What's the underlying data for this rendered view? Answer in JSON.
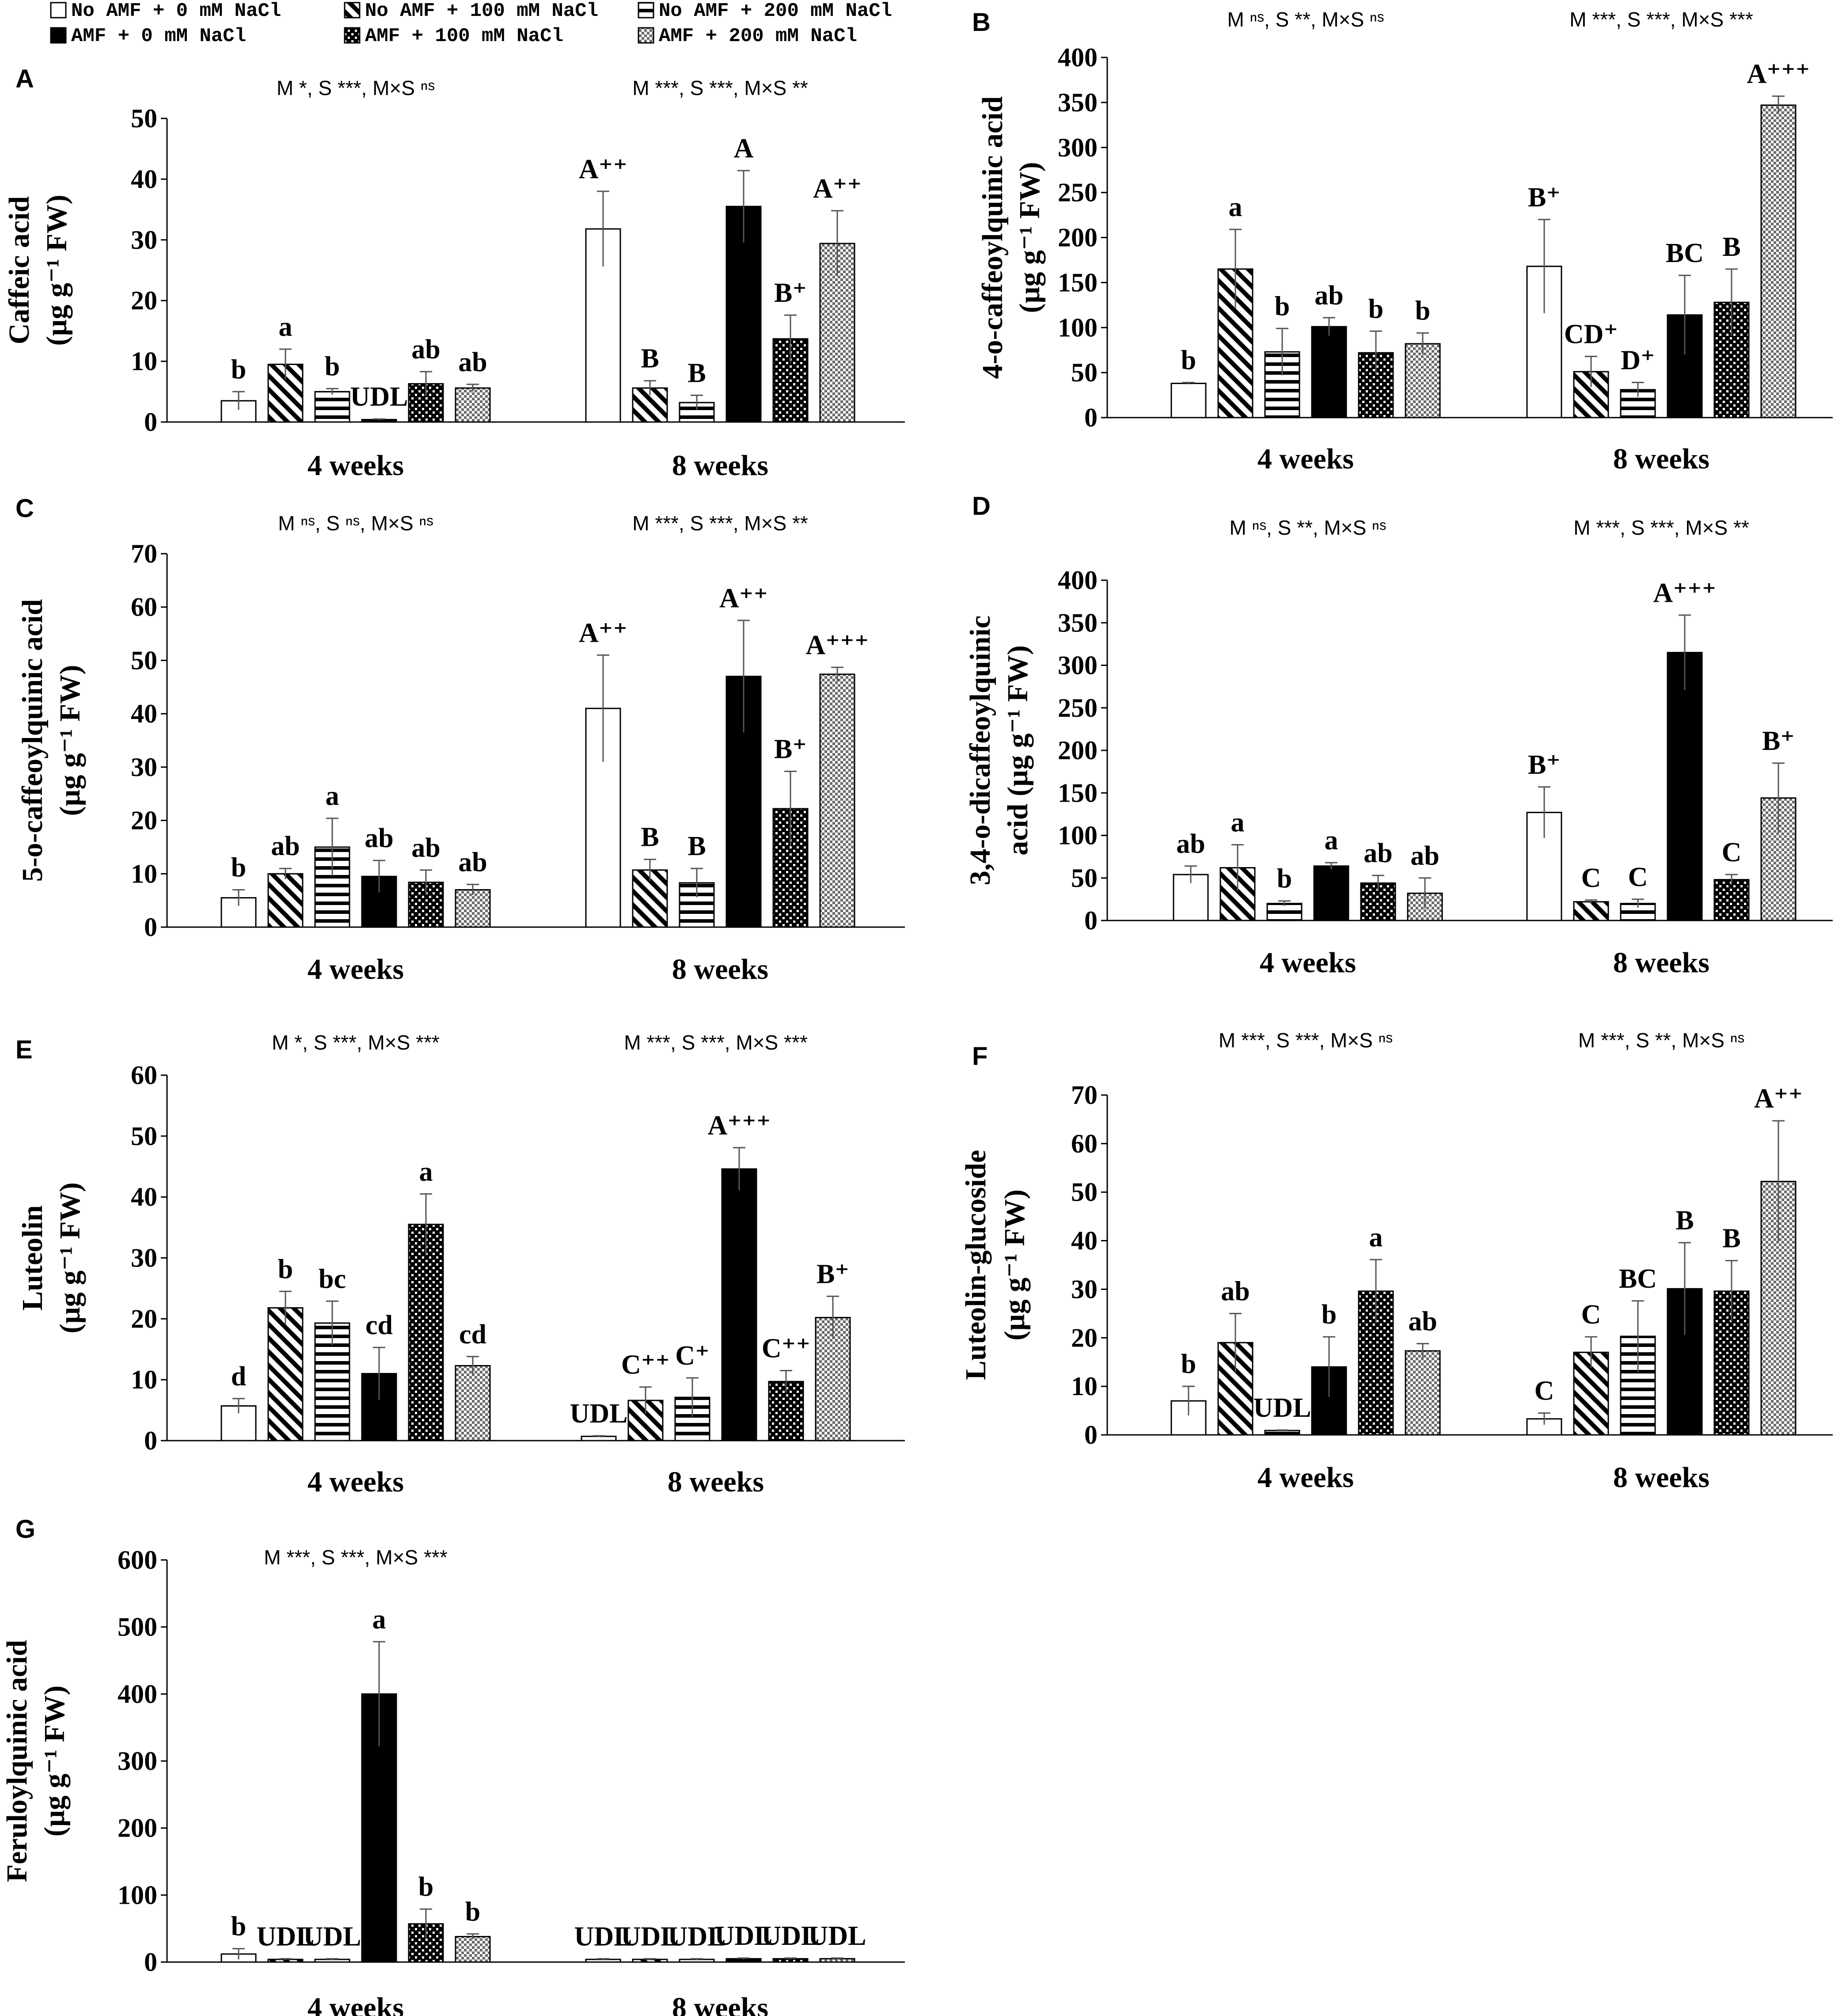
{
  "legend": [
    {
      "key": "no_amf_0",
      "label": "No AMF + 0 mM NaCl",
      "pattern": "white"
    },
    {
      "key": "no_amf_100",
      "label": "No AMF + 100 mM NaCl",
      "pattern": "diag"
    },
    {
      "key": "no_amf_200",
      "label": "No AMF + 200 mM NaCl",
      "pattern": "horiz"
    },
    {
      "key": "amf_0",
      "label": "AMF + 0 mM NaCl",
      "pattern": "black"
    },
    {
      "key": "amf_100",
      "label": "AMF + 100 mM NaCl",
      "pattern": "dots"
    },
    {
      "key": "amf_200",
      "label": "AMF + 200 mM NaCl",
      "pattern": "checker"
    }
  ],
  "colors": {
    "bar_black": "#000000",
    "bar_outline": "#000000",
    "background": "#ffffff"
  },
  "chart_data": [
    {
      "id": "A",
      "type": "bar",
      "panel_label": "A",
      "ylabel": [
        "Caffeic acid",
        "(µg g⁻¹ FW)"
      ],
      "ylim": [
        0,
        50
      ],
      "yticks": [
        0,
        10,
        20,
        30,
        40,
        50
      ],
      "categories": [
        "4 weeks",
        "8 weeks"
      ],
      "stats": [
        "M *,  S ***, M×S ⁿˢ",
        "M ***,  S ***, M×S **"
      ],
      "series": [
        {
          "name": "No AMF + 0 mM NaCl",
          "values": [
            3.5,
            31.8
          ],
          "errors": [
            1.5,
            6.2
          ],
          "letters": [
            "b",
            "A⁺⁺"
          ]
        },
        {
          "name": "No AMF + 100 mM NaCl",
          "values": [
            9.5,
            5.6
          ],
          "errors": [
            2.5,
            1.2
          ],
          "letters": [
            "a",
            "B"
          ]
        },
        {
          "name": "No AMF + 200 mM NaCl",
          "values": [
            5.0,
            3.2
          ],
          "errors": [
            0.5,
            1.2
          ],
          "letters": [
            "b",
            "B"
          ]
        },
        {
          "name": "AMF + 0 mM NaCl",
          "values": [
            0.4,
            35.5
          ],
          "errors": [
            0.1,
            5.9
          ],
          "letters": [
            "UDL",
            "A"
          ]
        },
        {
          "name": "AMF + 100 mM NaCl",
          "values": [
            6.3,
            13.7
          ],
          "errors": [
            2.0,
            3.9
          ],
          "letters": [
            "ab",
            "B⁺"
          ]
        },
        {
          "name": "AMF + 200 mM NaCl",
          "values": [
            5.6,
            29.4
          ],
          "errors": [
            0.6,
            5.4
          ],
          "letters": [
            "ab",
            "A⁺⁺"
          ]
        }
      ]
    },
    {
      "id": "B",
      "type": "bar",
      "panel_label": "B",
      "ylabel": [
        "4-o-caffeoylquinic acid",
        "(µg g⁻¹ FW)"
      ],
      "ylim": [
        0,
        400
      ],
      "yticks": [
        0,
        50,
        100,
        150,
        200,
        250,
        300,
        350,
        400
      ],
      "categories": [
        "4 weeks",
        "8 weeks"
      ],
      "stats": [
        "M ⁿˢ,  S **, M×S ⁿˢ",
        "M ***,  S ***, M×S ***"
      ],
      "series": [
        {
          "name": "No AMF + 0 mM NaCl",
          "values": [
            38,
            168
          ],
          "errors": [
            1,
            52
          ],
          "letters": [
            "b",
            "B⁺"
          ]
        },
        {
          "name": "No AMF + 100 mM NaCl",
          "values": [
            165,
            51
          ],
          "errors": [
            44,
            17
          ],
          "letters": [
            "a",
            "CD⁺"
          ]
        },
        {
          "name": "No AMF + 200 mM NaCl",
          "values": [
            73,
            31
          ],
          "errors": [
            26,
            8
          ],
          "letters": [
            "b",
            "D⁺"
          ]
        },
        {
          "name": "AMF + 0 mM NaCl",
          "values": [
            101,
            114
          ],
          "errors": [
            10,
            44
          ],
          "letters": [
            "ab",
            "BC"
          ]
        },
        {
          "name": "AMF + 100 mM NaCl",
          "values": [
            72,
            128
          ],
          "errors": [
            24,
            37
          ],
          "letters": [
            "b",
            "B"
          ]
        },
        {
          "name": "AMF + 200 mM NaCl",
          "values": [
            82,
            347
          ],
          "errors": [
            12,
            10
          ],
          "letters": [
            "b",
            "A⁺⁺⁺"
          ]
        }
      ]
    },
    {
      "id": "C",
      "type": "bar",
      "panel_label": "C",
      "ylabel": [
        "5-o-caffeoylquinic acid",
        "(µg g⁻¹ FW)"
      ],
      "ylim": [
        0,
        70
      ],
      "yticks": [
        0,
        10,
        20,
        30,
        40,
        50,
        60,
        70
      ],
      "categories": [
        "4 weeks",
        "8 weeks"
      ],
      "stats": [
        "M ⁿˢ,  S ⁿˢ, M×S ⁿˢ",
        "M ***,  S ***, M×S **"
      ],
      "series": [
        {
          "name": "No AMF + 0 mM NaCl",
          "values": [
            5.5,
            41
          ],
          "errors": [
            1.5,
            10
          ],
          "letters": [
            "b",
            "A⁺⁺"
          ]
        },
        {
          "name": "No AMF + 100 mM NaCl",
          "values": [
            10,
            10.7
          ],
          "errors": [
            1.0,
            2.0
          ],
          "letters": [
            "ab",
            "B"
          ]
        },
        {
          "name": "No AMF + 200 mM NaCl",
          "values": [
            15,
            8.3
          ],
          "errors": [
            5.4,
            2.7
          ],
          "letters": [
            "a",
            "B"
          ]
        },
        {
          "name": "AMF + 0 mM NaCl",
          "values": [
            9.5,
            47
          ],
          "errors": [
            3.0,
            10.5
          ],
          "letters": [
            "ab",
            "A⁺⁺"
          ]
        },
        {
          "name": "AMF + 100 mM NaCl",
          "values": [
            8.4,
            22.2
          ],
          "errors": [
            2.3,
            7.0
          ],
          "letters": [
            "ab",
            "B⁺"
          ]
        },
        {
          "name": "AMF + 200 mM NaCl",
          "values": [
            7.0,
            47.4
          ],
          "errors": [
            1.0,
            1.3
          ],
          "letters": [
            "ab",
            "A⁺⁺⁺"
          ]
        }
      ]
    },
    {
      "id": "D",
      "type": "bar",
      "panel_label": "D",
      "ylabel": [
        "3,4-o-dicaffeoylquinic",
        "acid (µg g⁻¹ FW)"
      ],
      "ylim": [
        0,
        400
      ],
      "yticks": [
        0,
        50,
        100,
        150,
        200,
        250,
        300,
        350,
        400
      ],
      "categories": [
        "4 weeks",
        "8 weeks"
      ],
      "stats": [
        "M ⁿˢ,  S **, M×S ⁿˢ",
        "M ***,  S ***, M×S **"
      ],
      "series": [
        {
          "name": "No AMF + 0 mM NaCl",
          "values": [
            54,
            127
          ],
          "errors": [
            10,
            30
          ],
          "letters": [
            "ab",
            "B⁺"
          ]
        },
        {
          "name": "No AMF + 100 mM NaCl",
          "values": [
            62,
            22
          ],
          "errors": [
            27,
            2
          ],
          "letters": [
            "a",
            "C"
          ]
        },
        {
          "name": "No AMF + 200 mM NaCl",
          "values": [
            20,
            20
          ],
          "errors": [
            3,
            5
          ],
          "letters": [
            "b",
            "C"
          ]
        },
        {
          "name": "AMF + 0 mM NaCl",
          "values": [
            64,
            315
          ],
          "errors": [
            4,
            44
          ],
          "letters": [
            "a",
            "A⁺⁺⁺"
          ]
        },
        {
          "name": "AMF + 100 mM NaCl",
          "values": [
            44,
            48
          ],
          "errors": [
            9,
            6
          ],
          "letters": [
            "ab",
            "C"
          ]
        },
        {
          "name": "AMF + 200 mM NaCl",
          "values": [
            32,
            144
          ],
          "errors": [
            18,
            41
          ],
          "letters": [
            "ab",
            "B⁺"
          ]
        }
      ]
    },
    {
      "id": "E",
      "type": "bar",
      "panel_label": "E",
      "ylabel": [
        "Luteolin",
        "(µg g⁻¹ FW)"
      ],
      "ylim": [
        0,
        60
      ],
      "yticks": [
        0,
        10,
        20,
        30,
        40,
        50,
        60
      ],
      "categories": [
        "4 weeks",
        "8 weeks"
      ],
      "stats": [
        "M *,  S ***, M×S ***",
        "M ***,  S ***, M×S ***"
      ],
      "series": [
        {
          "name": "No AMF + 0 mM NaCl",
          "values": [
            5.7,
            0.7
          ],
          "errors": [
            1.2,
            0.1
          ],
          "letters": [
            "d",
            "UDL"
          ]
        },
        {
          "name": "No AMF + 100 mM NaCl",
          "values": [
            21.8,
            6.6
          ],
          "errors": [
            2.7,
            2.2
          ],
          "letters": [
            "b",
            "C⁺⁺"
          ]
        },
        {
          "name": "No AMF + 200 mM NaCl",
          "values": [
            19.3,
            7.1
          ],
          "errors": [
            3.6,
            3.2
          ],
          "letters": [
            "bc",
            "C⁺"
          ]
        },
        {
          "name": "AMF + 0 mM NaCl",
          "values": [
            11.0,
            44.6
          ],
          "errors": [
            4.3,
            3.5
          ],
          "letters": [
            "cd",
            "A⁺⁺⁺"
          ]
        },
        {
          "name": "AMF + 100 mM NaCl",
          "values": [
            35.5,
            9.7
          ],
          "errors": [
            5.0,
            1.8
          ],
          "letters": [
            "a",
            "C⁺⁺"
          ]
        },
        {
          "name": "AMF + 200 mM NaCl",
          "values": [
            12.3,
            20.2
          ],
          "errors": [
            1.5,
            3.5
          ],
          "letters": [
            "cd",
            "B⁺"
          ]
        }
      ]
    },
    {
      "id": "F",
      "type": "bar",
      "panel_label": "F",
      "ylabel": [
        "Luteolin-glucoside",
        "(µg g⁻¹ FW)"
      ],
      "ylim": [
        0,
        70
      ],
      "yticks": [
        0,
        10,
        20,
        30,
        40,
        50,
        60,
        70
      ],
      "categories": [
        "4 weeks",
        "8 weeks"
      ],
      "stats": [
        "M ***,  S ***, M×S ⁿˢ",
        "M ***,  S **, M×S ⁿˢ"
      ],
      "series": [
        {
          "name": "No AMF + 0 mM NaCl",
          "values": [
            7.0,
            3.3
          ],
          "errors": [
            3.0,
            1.2
          ],
          "letters": [
            "b",
            "C"
          ]
        },
        {
          "name": "No AMF + 100 mM NaCl",
          "values": [
            19.0,
            17.0
          ],
          "errors": [
            6.0,
            3.2
          ],
          "letters": [
            "ab",
            "C"
          ]
        },
        {
          "name": "No AMF + 200 mM NaCl",
          "values": [
            0.9,
            20.3
          ],
          "errors": [
            0.1,
            7.3
          ],
          "letters": [
            "UDL",
            "BC"
          ]
        },
        {
          "name": "AMF + 0 mM NaCl",
          "values": [
            14.0,
            30.1
          ],
          "errors": [
            6.2,
            9.5
          ],
          "letters": [
            "b",
            "B"
          ]
        },
        {
          "name": "AMF + 100 mM NaCl",
          "values": [
            29.6,
            29.6
          ],
          "errors": [
            6.5,
            6.3
          ],
          "letters": [
            "a",
            "B"
          ]
        },
        {
          "name": "AMF + 200 mM NaCl",
          "values": [
            17.3,
            52.2
          ],
          "errors": [
            1.5,
            12.5
          ],
          "letters": [
            "ab",
            "A⁺⁺"
          ]
        }
      ]
    },
    {
      "id": "G",
      "type": "bar",
      "panel_label": "G",
      "ylabel": [
        "Feruloylquinic  acid",
        "(µg g⁻¹ FW)"
      ],
      "ylim": [
        0,
        600
      ],
      "yticks": [
        0,
        100,
        200,
        300,
        400,
        500,
        600
      ],
      "categories": [
        "4 weeks",
        "8 weeks"
      ],
      "stats": [
        "M ***,  S ***, M×S ***"
      ],
      "series": [
        {
          "name": "No AMF + 0 mM NaCl",
          "values": [
            12,
            4
          ],
          "errors": [
            8,
            1
          ],
          "letters": [
            "b",
            "UDL"
          ]
        },
        {
          "name": "No AMF + 100 mM NaCl",
          "values": [
            4,
            4
          ],
          "errors": [
            1,
            1
          ],
          "letters": [
            "UDL",
            "UDL"
          ]
        },
        {
          "name": "No AMF + 200 mM NaCl",
          "values": [
            4,
            4
          ],
          "errors": [
            1,
            1
          ],
          "letters": [
            "UDL",
            "UDL"
          ]
        },
        {
          "name": "AMF + 0 mM NaCl",
          "values": [
            400,
            5
          ],
          "errors": [
            78,
            1
          ],
          "letters": [
            "a",
            "UDL"
          ]
        },
        {
          "name": "AMF + 100 mM NaCl",
          "values": [
            57,
            5
          ],
          "errors": [
            22,
            1
          ],
          "letters": [
            "b",
            "UDL"
          ]
        },
        {
          "name": "AMF + 200 mM NaCl",
          "values": [
            38,
            5
          ],
          "errors": [
            4,
            1
          ],
          "letters": [
            "b",
            "UDL"
          ]
        }
      ]
    }
  ]
}
